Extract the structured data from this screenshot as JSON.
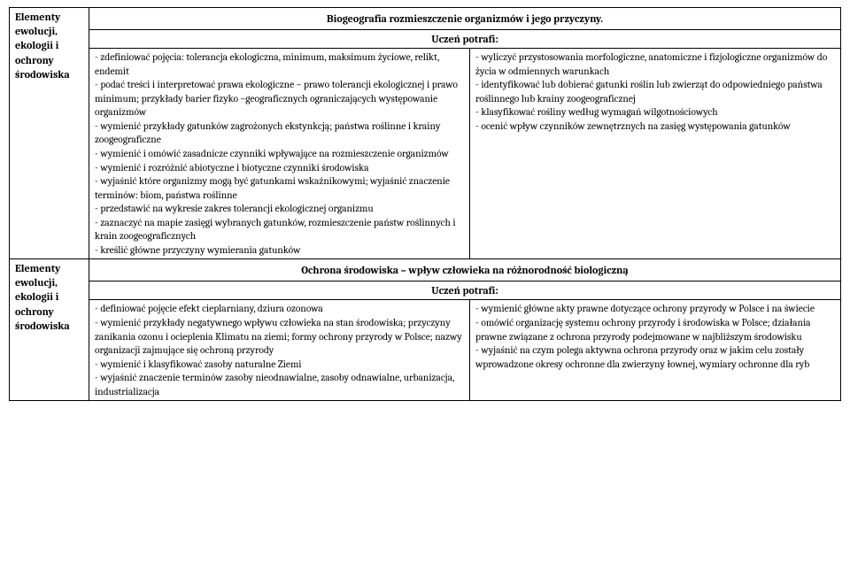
{
  "row1": {
    "side": "Elementy ewolucji, ekologii i ochrony środowiska",
    "title": "Biogeografia rozmieszczenie organizmów i jego przyczyny.",
    "sub": "Uczeń potrafi:",
    "left": "- zdefiniować pojęcia: tolerancja ekologiczna, minimum, maksimum życiowe, relikt, endemit\n- podać treści i interpretować prawa ekologiczne – prawo tolerancji ekologicznej i prawo minimum; przykłady barier fizyko –geograficznych ograniczających występowanie organizmów\n- wymienić przykłady gatunków zagrożonych ekstynkcją; państwa roślinne i krainy zoogeograficzne\n- wymienić i omówić zasadnicze czynniki wpływające na rozmieszczenie organizmów\n- wymienić i rozróżnić abiotyczne i biotyczne czynniki środowiska\n- wyjaśnić które organizmy mogą być gatunkami wskaźnikowymi; wyjaśnić znaczenie terminów: biom, państwa roślinne\n- przedstawić na wykresie zakres tolerancji ekologicznej organizmu\n- zaznaczyć na mapie zasięgi wybranych gatunków, rozmieszczenie państw roślinnych i krain zoogeograficznych\n- kreślić główne przyczyny wymierania gatunków",
    "right": "- wyliczyć przystosowania morfologiczne, anatomiczne i fizjologiczne organizmów do życia w odmiennych warunkach\n- identyfikować lub dobierać gatunki roślin lub zwierząt do odpowiedniego państwa roślinnego lub krainy zoogeograficznej\n- klasyfikować rośliny według wymagań wilgotnościowych\n- ocenić wpływ czynników zewnętrznych na zasięg występowania gatunków"
  },
  "row2": {
    "side": "Elementy ewolucji, ekologii i ochrony środowiska",
    "title": "Ochrona środowiska – wpływ człowieka na różnorodność biologiczną",
    "sub": "Uczeń potrafi:",
    "left": "- definiować pojęcie efekt cieplarniany, dziura ozonowa\n- wymienić przykłady negatywnego wpływu człowieka na stan środowiska; przyczyny zanikania ozonu i ocieplenia Klimatu na ziemi; formy ochrony przyrody w Polsce; nazwy organizacji zajmujące się ochroną przyrody\n- wymienić i klasyfikować zasoby naturalne Ziemi\n- wyjaśnić znaczenie terminów zasoby nieodnawialne, zasoby odnawialne, urbanizacja, industrializacja",
    "right": "- wymienić główne akty prawne dotyczące ochrony przyrody w Polsce i na świecie\n- omówić organizację systemu ochrony przyrody i środowiska w Polsce; działania prawne związane z ochrona przyrody podejmowane w najbliższym środowisku\n- wyjaśnić na czym polega aktywna ochrona przyrody oraz w jakim celu zostały wprowadzone okresy ochronne dla zwierzyny łownej, wymiary ochronne dla ryb"
  }
}
